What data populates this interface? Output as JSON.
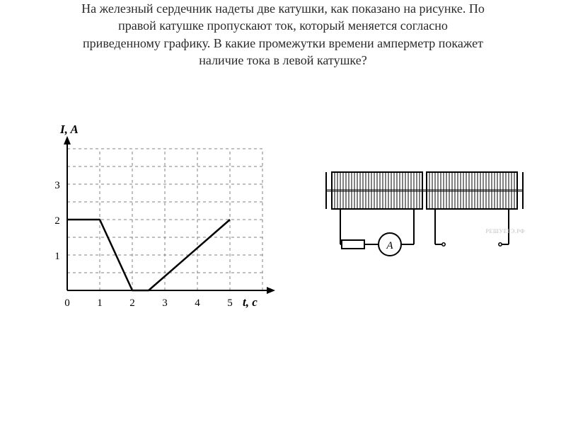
{
  "problem": {
    "line1": "На железный сердечник надеты две катушки, как показано на рисунке. По",
    "line2": "правой катушке пропускают ток, который меняется согласно",
    "line3": "приведенному графику. В какие промежутки времени амперметр покажет",
    "line4": "наличие тока в левой катушке?"
  },
  "chart": {
    "type": "line",
    "y_label": "I, A",
    "x_label": "t, c",
    "y_ticks": [
      "0",
      "1",
      "2",
      "3"
    ],
    "x_ticks": [
      "0",
      "1",
      "2",
      "3",
      "4",
      "5"
    ],
    "xlim": [
      0,
      6
    ],
    "ylim": [
      0,
      4
    ],
    "grid_step_x": 1,
    "grid_step_minor_y": 0.5,
    "grid_style": "dashed",
    "axis_color": "#000000",
    "grid_color": "#808080",
    "line_color": "#000000",
    "line_width": 2,
    "background": "#ffffff",
    "tick_fontsize": 15,
    "label_fontsize": 17,
    "points": [
      {
        "t": 0,
        "I": 2
      },
      {
        "t": 1,
        "I": 2
      },
      {
        "t": 2,
        "I": 0
      },
      {
        "t": 2.5,
        "I": 0
      },
      {
        "t": 5,
        "I": 2
      }
    ]
  },
  "diagram": {
    "ammeter_label": "A",
    "coil_color": "#000000",
    "line_width": 2,
    "background": "#ffffff"
  },
  "watermark": "РЕШУЕГЭ.РФ"
}
